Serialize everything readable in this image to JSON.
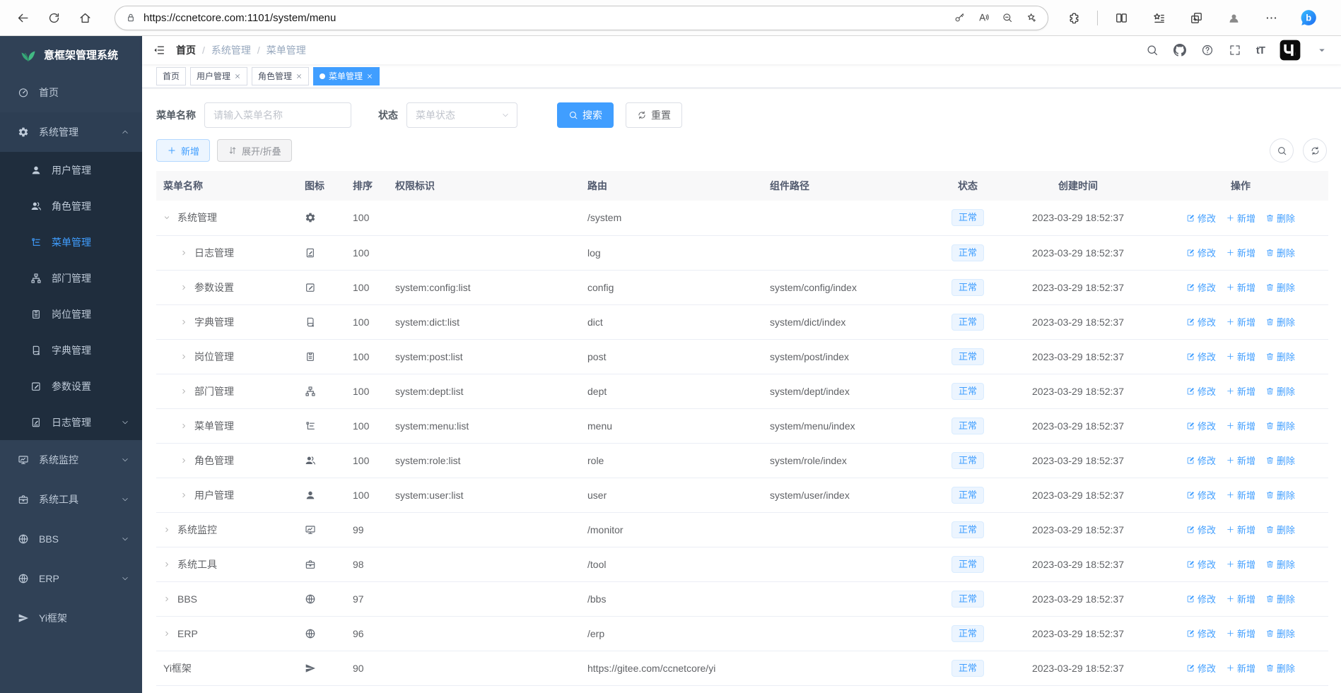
{
  "browser": {
    "url": "https://ccnetcore.com:1101/system/menu"
  },
  "sidebar": {
    "logo_text": "意框架管理系统",
    "items": [
      {
        "label": "首页",
        "icon": "dashboard"
      },
      {
        "label": "系统管理",
        "icon": "gear",
        "expanded": true,
        "chevron": "up",
        "children": [
          {
            "label": "用户管理",
            "icon": "user"
          },
          {
            "label": "角色管理",
            "icon": "role"
          },
          {
            "label": "菜单管理",
            "icon": "menu",
            "active": true
          },
          {
            "label": "部门管理",
            "icon": "dept"
          },
          {
            "label": "岗位管理",
            "icon": "post"
          },
          {
            "label": "字典管理",
            "icon": "dict"
          },
          {
            "label": "参数设置",
            "icon": "edit"
          },
          {
            "label": "日志管理",
            "icon": "log",
            "chevron": "down"
          }
        ]
      },
      {
        "label": "系统监控",
        "icon": "monitor",
        "chevron": "down"
      },
      {
        "label": "系统工具",
        "icon": "tool",
        "chevron": "down"
      },
      {
        "label": "BBS",
        "icon": "globe",
        "chevron": "down"
      },
      {
        "label": "ERP",
        "icon": "globe",
        "chevron": "down"
      },
      {
        "label": "Yi框架",
        "icon": "plane"
      }
    ]
  },
  "breadcrumb": [
    "首页",
    "系统管理",
    "菜单管理"
  ],
  "tabs": [
    {
      "label": "首页",
      "closable": false,
      "active": false
    },
    {
      "label": "用户管理",
      "closable": true,
      "active": false
    },
    {
      "label": "角色管理",
      "closable": true,
      "active": false
    },
    {
      "label": "菜单管理",
      "closable": true,
      "active": true
    }
  ],
  "filter": {
    "name_label": "菜单名称",
    "name_placeholder": "请输入菜单名称",
    "status_label": "状态",
    "status_placeholder": "菜单状态",
    "search_label": "搜索",
    "reset_label": "重置"
  },
  "toolbar": {
    "add_label": "新增",
    "toggle_label": "展开/折叠"
  },
  "table": {
    "columns": [
      "菜单名称",
      "图标",
      "排序",
      "权限标识",
      "路由",
      "组件路径",
      "状态",
      "创建时间",
      "操作"
    ],
    "row_actions": [
      "修改",
      "新增",
      "删除"
    ],
    "rows": [
      {
        "name": "系统管理",
        "icon": "gear",
        "level": 0,
        "expand": "down",
        "order": "100",
        "perms": "",
        "path": "/system",
        "component": "",
        "status": "正常",
        "time": "2023-03-29 18:52:37"
      },
      {
        "name": "日志管理",
        "icon": "log",
        "level": 1,
        "expand": "right",
        "order": "100",
        "perms": "",
        "path": "log",
        "component": "",
        "status": "正常",
        "time": "2023-03-29 18:52:37"
      },
      {
        "name": "参数设置",
        "icon": "edit",
        "level": 1,
        "expand": "right",
        "order": "100",
        "perms": "system:config:list",
        "path": "config",
        "component": "system/config/index",
        "status": "正常",
        "time": "2023-03-29 18:52:37"
      },
      {
        "name": "字典管理",
        "icon": "dict",
        "level": 1,
        "expand": "right",
        "order": "100",
        "perms": "system:dict:list",
        "path": "dict",
        "component": "system/dict/index",
        "status": "正常",
        "time": "2023-03-29 18:52:37"
      },
      {
        "name": "岗位管理",
        "icon": "post",
        "level": 1,
        "expand": "right",
        "order": "100",
        "perms": "system:post:list",
        "path": "post",
        "component": "system/post/index",
        "status": "正常",
        "time": "2023-03-29 18:52:37"
      },
      {
        "name": "部门管理",
        "icon": "dept",
        "level": 1,
        "expand": "right",
        "order": "100",
        "perms": "system:dept:list",
        "path": "dept",
        "component": "system/dept/index",
        "status": "正常",
        "time": "2023-03-29 18:52:37"
      },
      {
        "name": "菜单管理",
        "icon": "menu",
        "level": 1,
        "expand": "right",
        "order": "100",
        "perms": "system:menu:list",
        "path": "menu",
        "component": "system/menu/index",
        "status": "正常",
        "time": "2023-03-29 18:52:37"
      },
      {
        "name": "角色管理",
        "icon": "role",
        "level": 1,
        "expand": "right",
        "order": "100",
        "perms": "system:role:list",
        "path": "role",
        "component": "system/role/index",
        "status": "正常",
        "time": "2023-03-29 18:52:37"
      },
      {
        "name": "用户管理",
        "icon": "user",
        "level": 1,
        "expand": "right",
        "order": "100",
        "perms": "system:user:list",
        "path": "user",
        "component": "system/user/index",
        "status": "正常",
        "time": "2023-03-29 18:52:37"
      },
      {
        "name": "系统监控",
        "icon": "monitor",
        "level": 0,
        "expand": "right",
        "order": "99",
        "perms": "",
        "path": "/monitor",
        "component": "",
        "status": "正常",
        "time": "2023-03-29 18:52:37"
      },
      {
        "name": "系统工具",
        "icon": "tool",
        "level": 0,
        "expand": "right",
        "order": "98",
        "perms": "",
        "path": "/tool",
        "component": "",
        "status": "正常",
        "time": "2023-03-29 18:52:37"
      },
      {
        "name": "BBS",
        "icon": "globe",
        "level": 0,
        "expand": "right",
        "order": "97",
        "perms": "",
        "path": "/bbs",
        "component": "",
        "status": "正常",
        "time": "2023-03-29 18:52:37"
      },
      {
        "name": "ERP",
        "icon": "globe",
        "level": 0,
        "expand": "right",
        "order": "96",
        "perms": "",
        "path": "/erp",
        "component": "",
        "status": "正常",
        "time": "2023-03-29 18:52:37"
      },
      {
        "name": "Yi框架",
        "icon": "plane",
        "level": 0,
        "expand": "none",
        "order": "90",
        "perms": "",
        "path": "https://gitee.com/ccnetcore/yi",
        "component": "",
        "status": "正常",
        "time": "2023-03-29 18:52:37"
      }
    ]
  },
  "header_tools": {
    "font_size_label": "tT"
  },
  "colors": {
    "accent": "#409eff",
    "sidebar_bg": "#304156",
    "submenu_bg": "#1f2d3d",
    "tag_bg": "#ecf5ff",
    "logo_green": "#42b983",
    "active_tab_bg": "#409eff"
  }
}
